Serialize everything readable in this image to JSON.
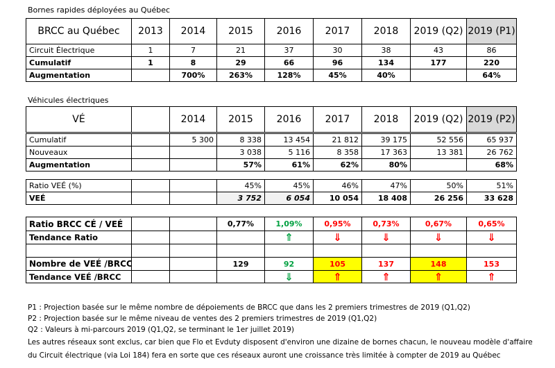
{
  "bornes": {
    "title": "Bornes rapides déployées au Québec",
    "header": [
      "BRCC au Québec",
      2013,
      2014,
      2015,
      2016,
      2017,
      2018,
      "2019 (Q2)",
      "2019 (P1)"
    ],
    "rows": [
      [
        "Circuit Électrique",
        1,
        7,
        21,
        37,
        30,
        38,
        43,
        86
      ],
      [
        "Cumulatif",
        1,
        8,
        29,
        66,
        96,
        134,
        177,
        220
      ],
      [
        "Augmentation",
        null,
        "700%",
        "263%",
        "128%",
        "45%",
        "40%",
        null,
        "64%"
      ]
    ]
  },
  "vehicules": {
    "title": "Véhicules électriques",
    "header": [
      "VÉ",
      null,
      2014,
      2015,
      2016,
      2017,
      2018,
      "2019 (Q2)",
      "2019 (P2)"
    ],
    "rows": [
      [
        "Cumulatif",
        null,
        "5 300",
        "8 338",
        "13 454",
        "21 812",
        "39 175",
        "52 556",
        "65 937"
      ],
      [
        "Nouveaux",
        null,
        null,
        "3 038",
        "5 116",
        "8 358",
        "17 363",
        "13 381",
        "26 762"
      ],
      [
        "Augmentation",
        null,
        null,
        "57%",
        "61%",
        "62%",
        "80%",
        null,
        "68%"
      ]
    ]
  },
  "ratio": {
    "rows": [
      [
        "Ratio VEÉ (%)",
        null,
        null,
        "45%",
        "45%",
        "46%",
        "47%",
        "50%",
        "51%"
      ],
      [
        "VEÉ",
        null,
        null,
        "3 752",
        "6 054",
        "10 054",
        "18 408",
        "26 256",
        "33 628"
      ]
    ]
  },
  "tendance": {
    "rows": [
      [
        "Ratio BRCC CÉ / VEÉ",
        null,
        null,
        "0,77%",
        "1,09%",
        "0,95%",
        "0,73%",
        "0,67%",
        "0,65%"
      ],
      [
        "Tendance Ratio",
        null,
        null,
        null,
        "⇑",
        "⇓",
        "⇓",
        "⇓",
        "⇓"
      ],
      [
        null,
        null,
        null,
        null,
        null,
        null,
        null,
        null,
        null
      ],
      [
        "Nombre de VEÉ /BRCC",
        null,
        null,
        129,
        92,
        105,
        137,
        148,
        153
      ],
      [
        "Tendance VEÉ /BRCC",
        null,
        null,
        null,
        "⇓",
        "⇑",
        "⇑",
        "⇑",
        "⇑"
      ]
    ]
  },
  "notes": [
    "P1 : Projection basée sur le même nombre de dépoiements de BRCC que dans les 2 premiers trimestres de 2019 (Q1,Q2)",
    "P2 : Projection basée sur le même niveau de ventes des 2 premiers trimestres de 2019 (Q1,Q2)",
    "Q2 : Valeurs à mi-parcours 2019 (Q1,Q2, se terminant le 1er juillet 2019)",
    "Les autres réseaux sont exclus, car bien que Flo et Evduty disposent d'environ une dizaine de bornes chacun, le nouveau modèle d'affaire",
    "du Circuit électrique (via Loi 184) fera en sorte que ces réseaux auront une croissance très limitée à compter de 2019 au Québec"
  ]
}
